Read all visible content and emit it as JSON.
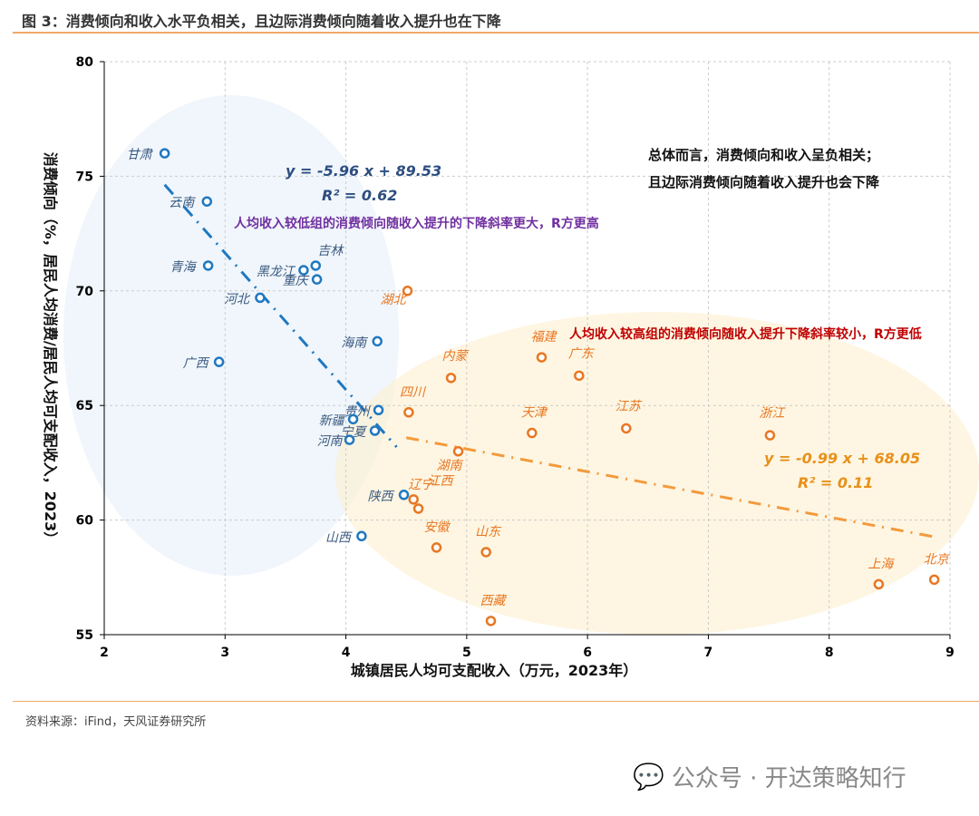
{
  "title": "图 3：消费倾向和收入水平负相关，且边际消费倾向随着收入提升也在下降",
  "source": "资料来源：iFind，天风证券研究所",
  "watermark": "公众号 · 开达策略知行",
  "chart_data": {
    "type": "scatter",
    "xlabel": "城镇居民人均可支配收入（万元，2023年）",
    "ylabel": "消费倾向（%，居民人均消费/居民人均可支配收入，2023）",
    "xlim": [
      2,
      9
    ],
    "ylim": [
      55,
      80
    ],
    "xticks": [
      2,
      3,
      4,
      5,
      6,
      7,
      8,
      9
    ],
    "yticks": [
      55,
      60,
      65,
      70,
      75,
      80
    ],
    "grid": true,
    "series": [
      {
        "color": "#1f78c1",
        "points": [
          {
            "label": "甘肃",
            "x": 2.5,
            "y": 76.0
          },
          {
            "label": "云南",
            "x": 2.85,
            "y": 73.9
          },
          {
            "label": "青海",
            "x": 2.86,
            "y": 71.1
          },
          {
            "label": "黑龙江",
            "x": 3.65,
            "y": 70.9
          },
          {
            "label": "吉林",
            "x": 3.75,
            "y": 71.1
          },
          {
            "label": "重庆",
            "x": 3.76,
            "y": 70.5
          },
          {
            "label": "河北",
            "x": 3.29,
            "y": 69.7
          },
          {
            "label": "海南",
            "x": 4.26,
            "y": 67.8
          },
          {
            "label": "广西",
            "x": 2.95,
            "y": 66.9
          },
          {
            "label": "贵州",
            "x": 4.27,
            "y": 64.8
          },
          {
            "label": "新疆",
            "x": 4.06,
            "y": 64.4
          },
          {
            "label": "宁夏",
            "x": 4.24,
            "y": 63.9
          },
          {
            "label": "河南",
            "x": 4.03,
            "y": 63.5
          },
          {
            "label": "陕西",
            "x": 4.48,
            "y": 61.1
          },
          {
            "label": "山西",
            "x": 4.13,
            "y": 59.3
          }
        ],
        "trend": {
          "slope": -5.96,
          "intercept": 89.53,
          "range": [
            2.5,
            4.42
          ],
          "equation": "y = -5.96 x + 89.53",
          "r2": "R² = 0.62"
        }
      },
      {
        "color": "#e87722",
        "points": [
          {
            "label": "湖北",
            "x": 4.51,
            "y": 70.0
          },
          {
            "label": "内蒙",
            "x": 4.87,
            "y": 66.2
          },
          {
            "label": "福建",
            "x": 5.62,
            "y": 67.1
          },
          {
            "label": "广东",
            "x": 5.93,
            "y": 66.3
          },
          {
            "label": "四川",
            "x": 4.52,
            "y": 64.7
          },
          {
            "label": "天津",
            "x": 5.54,
            "y": 63.8
          },
          {
            "label": "江苏",
            "x": 6.32,
            "y": 64.0
          },
          {
            "label": "浙江",
            "x": 7.51,
            "y": 63.7
          },
          {
            "label": "湖南",
            "x": 4.93,
            "y": 63.0
          },
          {
            "label": "江西",
            "x": 4.6,
            "y": 60.5
          },
          {
            "label": "辽宁",
            "x": 4.56,
            "y": 60.9
          },
          {
            "label": "安徽",
            "x": 4.75,
            "y": 58.8
          },
          {
            "label": "山东",
            "x": 5.16,
            "y": 58.6
          },
          {
            "label": "西藏",
            "x": 5.2,
            "y": 55.6
          },
          {
            "label": "上海",
            "x": 8.41,
            "y": 57.2
          },
          {
            "label": "北京",
            "x": 8.87,
            "y": 57.4
          }
        ],
        "trend": {
          "slope": -0.99,
          "intercept": 68.05,
          "range": [
            4.5,
            8.87
          ],
          "equation": "y = -0.99 x + 68.05",
          "r2": "R² = 0.11"
        }
      }
    ],
    "annotations": {
      "summary1": "总体而言，消费倾向和收入呈负相关；",
      "summary2": "且边际消费倾向随着收入提升也会下降",
      "low_group": "人均收入较低组的消费倾向随收入提升的下降斜率更大，R方更高",
      "high_group": "人均收入较高组的消费倾向随收入提升下降斜率较小，R方更低"
    }
  }
}
